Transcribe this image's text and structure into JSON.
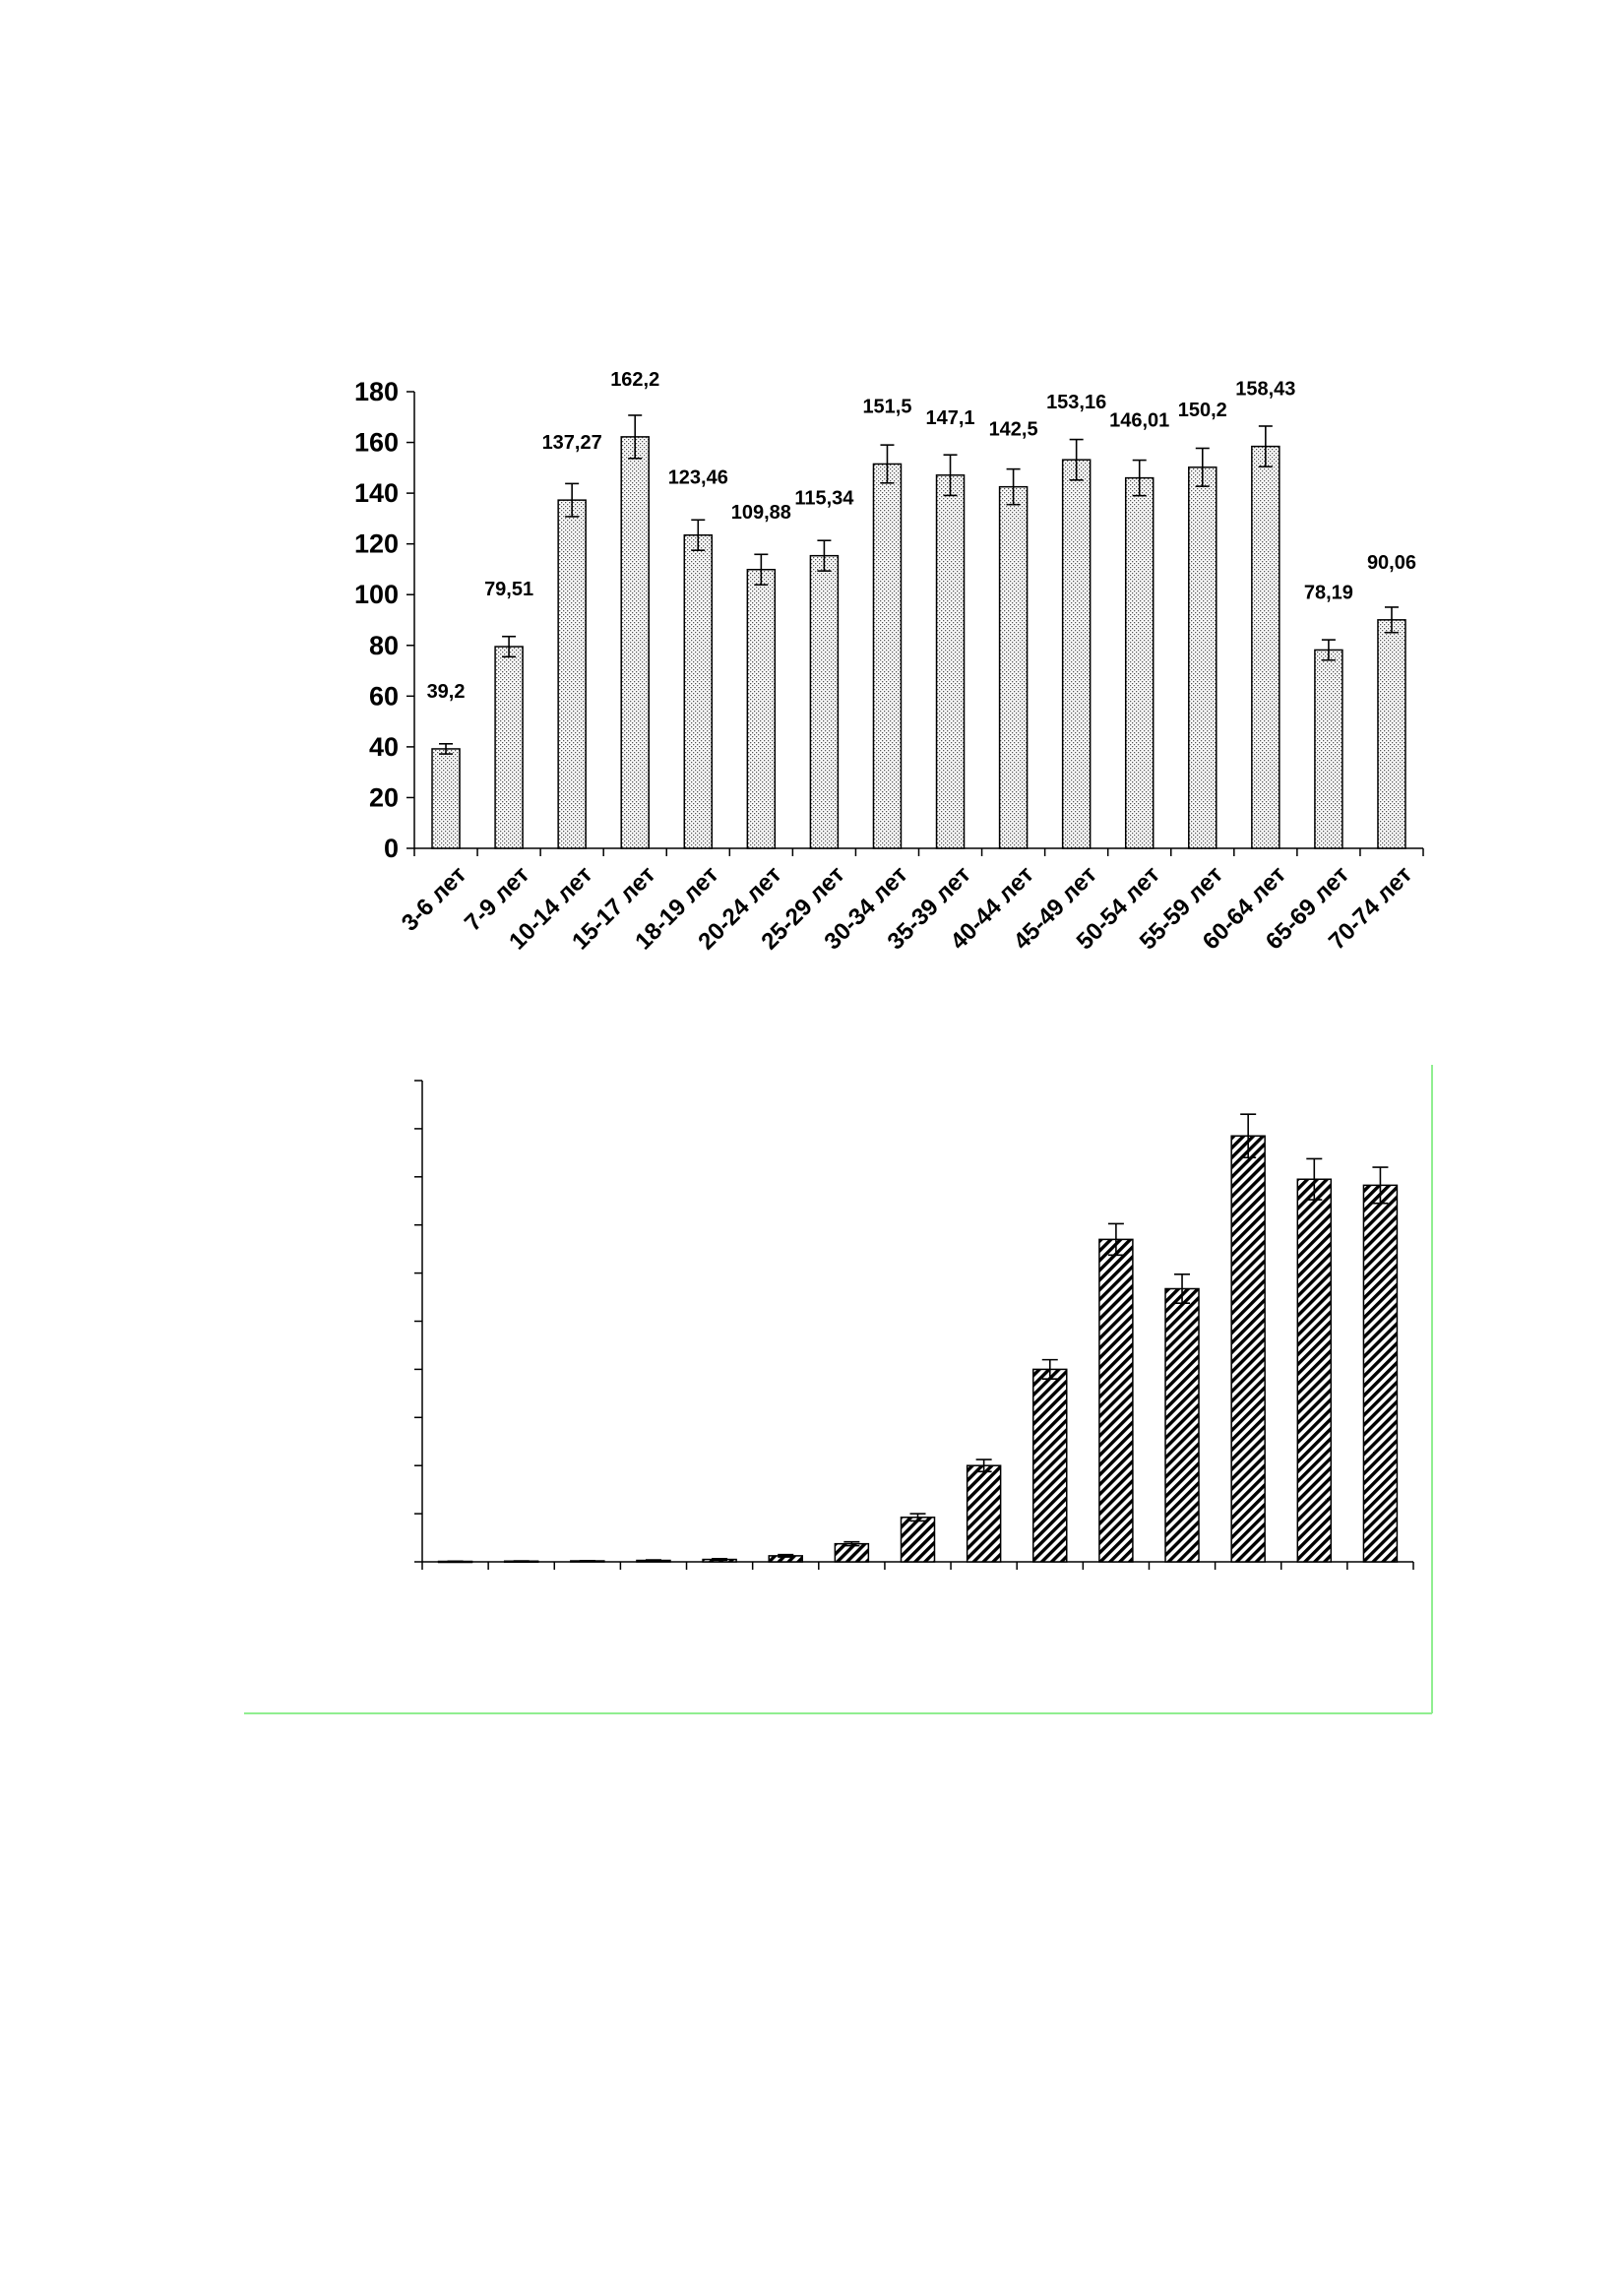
{
  "chart_data": [
    {
      "type": "bar",
      "categories": [
        "3-6 лет",
        "7-9 лет",
        "10-14 лет",
        "15-17 лет",
        "18-19 лет",
        "20-24 лет",
        "25-29 лет",
        "30-34 лет",
        "35-39 лет",
        "40-44 лет",
        "45-49 лет",
        "50-54 лет",
        "55-59 лет",
        "60-64 лет",
        "65-69 лет",
        "70-74 лет"
      ],
      "values": [
        39.2,
        79.51,
        137.27,
        162.2,
        123.46,
        109.88,
        115.34,
        151.5,
        147.1,
        142.5,
        153.16,
        146.01,
        150.2,
        158.43,
        78.19,
        90.06
      ],
      "errors": [
        2,
        4,
        6.5,
        8.5,
        6,
        6,
        6,
        7.5,
        8,
        7,
        8,
        7,
        7.5,
        8,
        4,
        5
      ],
      "data_labels": [
        "39,2",
        "79,51",
        "137,27",
        "162,2",
        "123,46",
        "109,88",
        "115,34",
        "151,5",
        "147,1",
        "142,5",
        "153,16",
        "146,01",
        "150,2",
        "158,43",
        "78,19",
        "90,06"
      ],
      "ylim": [
        0,
        180
      ],
      "yticks": [
        "0",
        "20",
        "40",
        "60",
        "80",
        "100",
        "120",
        "140",
        "160",
        "180"
      ],
      "grid": false,
      "bar_fill": "dotted",
      "title": "",
      "xlabel": "",
      "ylabel": ""
    },
    {
      "type": "bar",
      "categories_count": 15,
      "values": [
        0.2,
        0.3,
        0.4,
        0.6,
        1.0,
        2.5,
        7.5,
        18.5,
        40,
        80,
        134,
        113.5,
        177,
        159,
        156.5
      ],
      "errors": [
        0.1,
        0.1,
        0.1,
        0.2,
        0.3,
        0.5,
        0.8,
        1.5,
        2.5,
        4,
        6.5,
        6,
        9,
        8.5,
        7.5
      ],
      "ylim": [
        0,
        200
      ],
      "ytick_count": 10,
      "grid": false,
      "bar_fill": "hatched",
      "frame_color": "#90EE90"
    }
  ]
}
